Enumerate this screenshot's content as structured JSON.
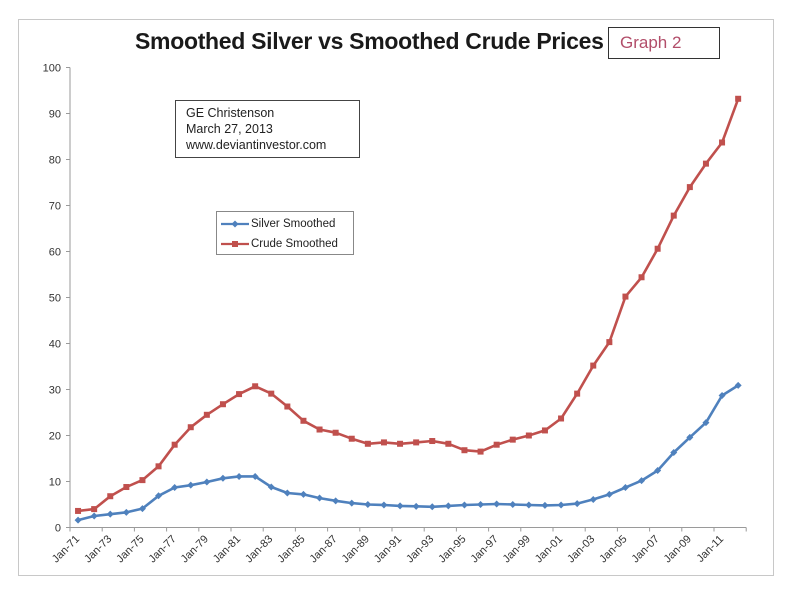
{
  "chart_data": {
    "type": "line",
    "title": "Smoothed Silver vs Smoothed Crude Prices",
    "badge": "Graph 2",
    "annotation": {
      "author": "GE Christenson",
      "date": "March 27, 2013",
      "website": "www.deviantinvestor.com"
    },
    "xlabel": "",
    "ylabel": "",
    "ylim": [
      0,
      100
    ],
    "yticks": [
      0,
      10,
      20,
      30,
      40,
      50,
      60,
      70,
      80,
      90,
      100
    ],
    "xtick_labels": [
      "Jan-71",
      "Jan-73",
      "Jan-75",
      "Jan-77",
      "Jan-79",
      "Jan-81",
      "Jan-83",
      "Jan-85",
      "Jan-87",
      "Jan-89",
      "Jan-91",
      "Jan-93",
      "Jan-95",
      "Jan-97",
      "Jan-99",
      "Jan-01",
      "Jan-03",
      "Jan-05",
      "Jan-07",
      "Jan-09",
      "Jan-11"
    ],
    "x": [
      "Jan-71",
      "Jan-72",
      "Jan-73",
      "Jan-74",
      "Jan-75",
      "Jan-76",
      "Jan-77",
      "Jan-78",
      "Jan-79",
      "Jan-80",
      "Jan-81",
      "Jan-82",
      "Jan-83",
      "Jan-84",
      "Jan-85",
      "Jan-86",
      "Jan-87",
      "Jan-88",
      "Jan-89",
      "Jan-90",
      "Jan-91",
      "Jan-92",
      "Jan-93",
      "Jan-94",
      "Jan-95",
      "Jan-96",
      "Jan-97",
      "Jan-98",
      "Jan-99",
      "Jan-00",
      "Jan-01",
      "Jan-02",
      "Jan-03",
      "Jan-04",
      "Jan-05",
      "Jan-06",
      "Jan-07",
      "Jan-08",
      "Jan-09",
      "Jan-10",
      "Jan-11",
      "Jan-12"
    ],
    "grid": false,
    "legend_position": "upper-left-center",
    "series": [
      {
        "name": "Silver Smoothed",
        "color": "#4f81bd",
        "marker": "diamond",
        "values": [
          1.6,
          2.5,
          2.9,
          3.3,
          4.1,
          6.9,
          8.7,
          9.2,
          9.9,
          10.7,
          11.1,
          11.1,
          8.8,
          7.5,
          7.2,
          6.4,
          5.8,
          5.3,
          5.0,
          4.9,
          4.7,
          4.6,
          4.5,
          4.7,
          4.9,
          5.0,
          5.1,
          5.0,
          4.9,
          4.8,
          4.9,
          5.2,
          6.1,
          7.2,
          8.7,
          10.2,
          12.4,
          16.3,
          19.6,
          22.8,
          28.7,
          30.9
        ]
      },
      {
        "name": "Crude Smoothed",
        "color": "#c0504d",
        "marker": "square",
        "values": [
          3.6,
          4.0,
          6.8,
          8.8,
          10.3,
          13.3,
          18.0,
          21.8,
          24.5,
          26.8,
          29.0,
          30.7,
          29.1,
          26.3,
          23.2,
          21.3,
          20.6,
          19.3,
          18.2,
          18.5,
          18.2,
          18.5,
          18.8,
          18.2,
          16.8,
          16.5,
          18.0,
          19.1,
          20.0,
          21.1,
          23.7,
          29.1,
          35.2,
          40.3,
          50.2,
          54.4,
          60.6,
          67.8,
          74.0,
          79.1,
          83.7,
          93.2
        ]
      }
    ]
  }
}
